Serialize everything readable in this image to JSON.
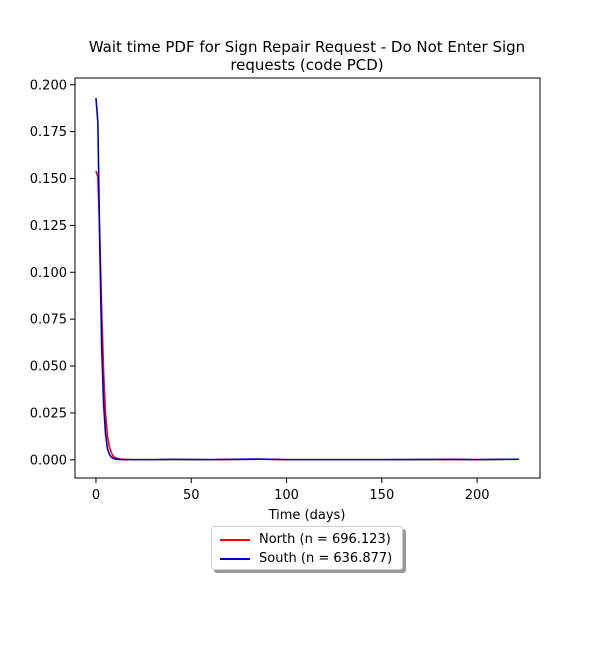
{
  "chart_data": {
    "type": "line",
    "title_lines": [
      "Wait time PDF for Sign Repair Request - Do Not Enter Sign",
      "requests (code PCD)"
    ],
    "xlabel": "Time (days)",
    "ylabel": "",
    "xlim": [
      -11,
      233
    ],
    "ylim": [
      -0.0097,
      0.2036
    ],
    "xticks": [
      0,
      50,
      100,
      150,
      200
    ],
    "yticks": [
      0.0,
      0.025,
      0.05,
      0.075,
      0.1,
      0.125,
      0.15,
      0.175,
      0.2
    ],
    "ytick_labels": [
      "0.000",
      "0.025",
      "0.050",
      "0.075",
      "0.100",
      "0.125",
      "0.150",
      "0.175",
      "0.200"
    ],
    "grid": false,
    "legend_position": "below",
    "series": [
      {
        "name": "North (n = 696.123)",
        "color": "#ff0000",
        "x": [
          0,
          1,
          2,
          3,
          4,
          5,
          6,
          7,
          8,
          9,
          10,
          12,
          15,
          20,
          30,
          40,
          60,
          85,
          100,
          150,
          190,
          200,
          222
        ],
        "y": [
          0.154,
          0.151,
          0.12,
          0.08,
          0.047,
          0.025,
          0.013,
          0.007,
          0.004,
          0.002,
          0.0012,
          0.0005,
          0.0002,
          0.0001,
          0.0001,
          0.0002,
          0.0001,
          0.0003,
          0.0001,
          0.0001,
          0.0002,
          0.0001,
          0.0003
        ]
      },
      {
        "name": "South (n = 636.877)",
        "color": "#0000cc",
        "x": [
          0,
          1,
          2,
          3,
          4,
          5,
          6,
          7,
          8,
          9,
          10,
          12,
          15,
          20,
          30,
          40,
          60,
          85,
          100,
          150,
          190,
          200,
          222
        ],
        "y": [
          0.193,
          0.18,
          0.115,
          0.06,
          0.03,
          0.014,
          0.006,
          0.003,
          0.0015,
          0.0008,
          0.0004,
          0.0002,
          0.0001,
          0.0001,
          0.0001,
          0.0002,
          0.0001,
          0.0004,
          0.0001,
          0.0001,
          0.0002,
          0.0001,
          0.0003
        ]
      }
    ]
  }
}
